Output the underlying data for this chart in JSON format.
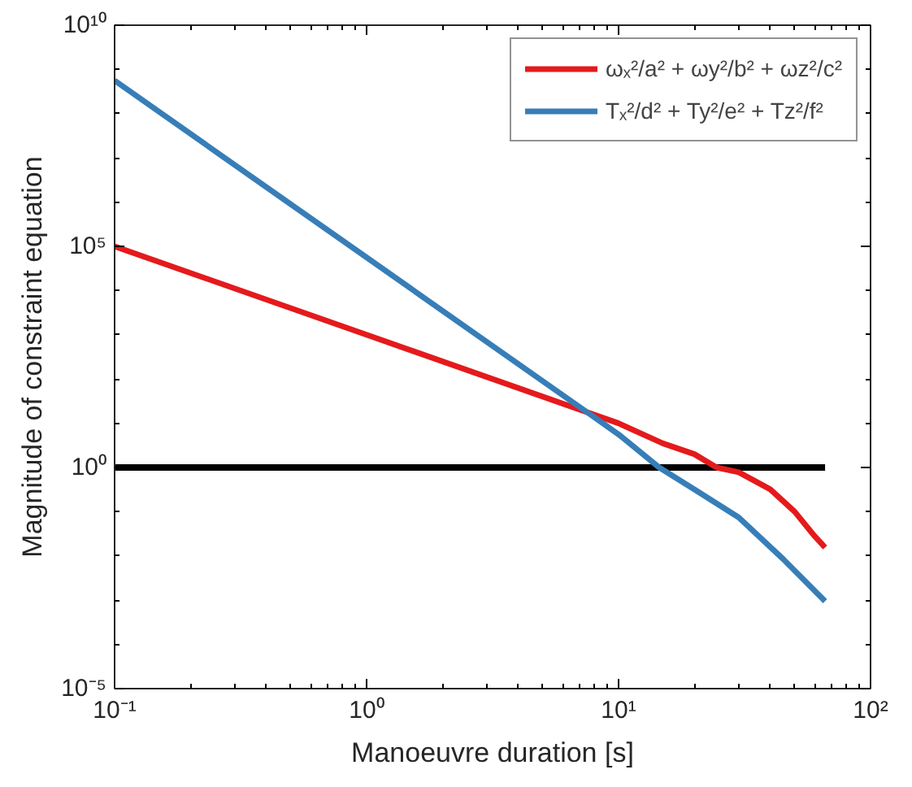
{
  "chart_data": {
    "type": "line",
    "xlabel": "Manoeuvre duration [s]",
    "ylabel": "Magnitude of constraint equation",
    "log": "xy",
    "grid": false,
    "legend": "top right",
    "line_style": "solid",
    "marker": "none",
    "xlim": [
      0.1,
      100
    ],
    "ylim": [
      1e-05,
      10000000000.0
    ],
    "xticks": [
      {
        "value": 0.1,
        "label": "10⁻¹"
      },
      {
        "value": 1,
        "label": "10⁰"
      },
      {
        "value": 10,
        "label": "10¹"
      },
      {
        "value": 100,
        "label": "10²"
      }
    ],
    "yticks": [
      {
        "value": 1e-05,
        "label": "10⁻⁵"
      },
      {
        "value": 1,
        "label": "10⁰"
      },
      {
        "value": 100000,
        "label": "10⁵"
      },
      {
        "value": 10000000000,
        "label": "10¹⁰"
      }
    ],
    "ref_lines": [
      {
        "axis": "y",
        "value": 1,
        "color": "#000000",
        "line_style": "solid"
      }
    ],
    "series": [
      {
        "name": "ωₓ²/a² + ωy²/b² + ωz²/c²",
        "color": "#e41a1c",
        "x": [
          0.1,
          1,
          10,
          15,
          20,
          24.5,
          30,
          40,
          50,
          60,
          66
        ],
        "values": [
          100000,
          1000,
          10,
          3.5,
          2,
          1,
          0.78,
          0.32,
          0.1,
          0.028,
          0.0155
        ]
      },
      {
        "name": "Tₓ²/d² + Ty²/e² + Tz²/f²",
        "color": "#377eb8",
        "x": [
          0.1,
          1,
          7.7,
          10,
          14.5,
          20,
          30,
          45,
          66
        ],
        "values": [
          560000000,
          56000,
          16,
          5.6,
          1,
          0.32,
          0.074,
          0.0085,
          0.00095
        ]
      }
    ]
  }
}
